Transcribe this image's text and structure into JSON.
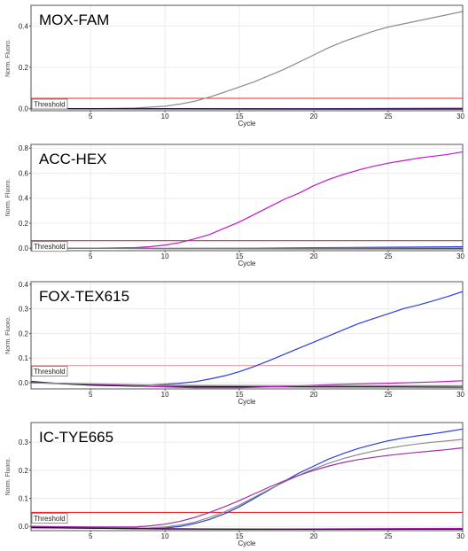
{
  "chart_data": [
    {
      "type": "line",
      "title": "MOX-FAM",
      "xlabel": "Cycle",
      "ylabel": "Norm. Fluoro.",
      "xlim": [
        1,
        30
      ],
      "ylim": [
        -0.01,
        0.5
      ],
      "xticks": [
        5,
        10,
        15,
        20,
        25,
        30
      ],
      "yticks": [
        0.0,
        0.2,
        0.4
      ],
      "ytick_labels": [
        "0.0",
        "0.2",
        "0.4"
      ],
      "threshold": 0.05,
      "threshold_label": "Threshold",
      "threshold_color": "#e8292e",
      "grid": true,
      "series": [
        {
          "color": "#8c8c8c",
          "x": [
            1,
            5,
            8,
            10,
            11,
            12,
            13,
            14,
            15,
            16,
            17,
            18,
            19,
            20,
            21,
            22,
            23,
            24,
            25,
            26,
            27,
            28,
            29,
            30
          ],
          "y": [
            0.0,
            0.0,
            0.003,
            0.012,
            0.022,
            0.036,
            0.056,
            0.08,
            0.105,
            0.13,
            0.16,
            0.19,
            0.225,
            0.26,
            0.295,
            0.325,
            0.35,
            0.375,
            0.395,
            0.41,
            0.425,
            0.44,
            0.455,
            0.47
          ]
        },
        {
          "color": "#2a3ee0",
          "x": [
            1,
            10,
            20,
            30
          ],
          "y": [
            0.0,
            0.0,
            0.0,
            0.002
          ]
        },
        {
          "color": "#9e2fa6",
          "x": [
            1,
            10,
            20,
            30
          ],
          "y": [
            0.0,
            -0.001,
            -0.001,
            0.0
          ]
        },
        {
          "color": "#111111",
          "x": [
            1,
            10,
            20,
            30
          ],
          "y": [
            0.0,
            -0.001,
            -0.002,
            -0.002
          ]
        }
      ]
    },
    {
      "type": "line",
      "title": "ACC-HEX",
      "xlabel": "Cycle",
      "ylabel": "Norm. Fluoro.",
      "xlim": [
        1,
        30
      ],
      "ylim": [
        -0.02,
        0.83
      ],
      "xticks": [
        5,
        10,
        15,
        20,
        25,
        30
      ],
      "yticks": [
        0.0,
        0.2,
        0.4,
        0.6,
        0.8
      ],
      "ytick_labels": [
        "0.0",
        "0.2",
        "0.4",
        "0.6",
        "0.8"
      ],
      "threshold": 0.06,
      "threshold_label": "Threshold",
      "threshold_color": "#e8292e",
      "grid": true,
      "series": [
        {
          "color": "#c018c8",
          "x": [
            1,
            5,
            8,
            9,
            10,
            11,
            12,
            13,
            14,
            15,
            16,
            17,
            18,
            19,
            20,
            21,
            22,
            23,
            24,
            25,
            26,
            27,
            28,
            29,
            30
          ],
          "y": [
            0.0,
            0.0,
            0.005,
            0.012,
            0.025,
            0.045,
            0.075,
            0.11,
            0.16,
            0.21,
            0.27,
            0.33,
            0.39,
            0.44,
            0.5,
            0.55,
            0.59,
            0.625,
            0.655,
            0.68,
            0.7,
            0.72,
            0.735,
            0.75,
            0.77
          ]
        },
        {
          "color": "#2a3ee0",
          "x": [
            1,
            10,
            15,
            20,
            25,
            30
          ],
          "y": [
            0.0,
            -0.002,
            0.0,
            0.004,
            0.008,
            0.012
          ]
        },
        {
          "color": "#111111",
          "x": [
            1,
            10,
            20,
            30
          ],
          "y": [
            0.0,
            -0.003,
            -0.004,
            -0.004
          ]
        },
        {
          "color": "#8c8c8c",
          "x": [
            1,
            10,
            20,
            30
          ],
          "y": [
            0.0,
            -0.001,
            0.0,
            0.002
          ]
        }
      ]
    },
    {
      "type": "line",
      "title": "FOX-TEX615",
      "xlabel": "Cycle",
      "ylabel": "Norm. Fluoro.",
      "xlim": [
        1,
        30
      ],
      "ylim": [
        -0.025,
        0.41
      ],
      "xticks": [
        5,
        10,
        15,
        20,
        25,
        30
      ],
      "yticks": [
        0.0,
        0.1,
        0.2,
        0.3,
        0.4
      ],
      "ytick_labels": [
        "0.0",
        "0.1",
        "0.2",
        "0.3",
        "0.4"
      ],
      "threshold": 0.07,
      "threshold_label": "Threshold",
      "threshold_color": "#f2a3a6",
      "grid": true,
      "series": [
        {
          "color": "#2a3ee0",
          "x": [
            1,
            5,
            8,
            10,
            11,
            12,
            13,
            14,
            15,
            16,
            17,
            18,
            19,
            20,
            21,
            22,
            23,
            24,
            25,
            26,
            27,
            28,
            29,
            30
          ],
          "y": [
            0.0,
            -0.008,
            -0.012,
            -0.006,
            -0.002,
            0.004,
            0.015,
            0.028,
            0.045,
            0.066,
            0.09,
            0.115,
            0.14,
            0.165,
            0.19,
            0.215,
            0.24,
            0.26,
            0.28,
            0.3,
            0.315,
            0.332,
            0.35,
            0.37
          ]
        },
        {
          "color": "#111111",
          "x": [
            1,
            3,
            5,
            8,
            10,
            15,
            20,
            25,
            30
          ],
          "y": [
            0.005,
            -0.004,
            -0.01,
            -0.014,
            -0.015,
            -0.016,
            -0.017,
            -0.017,
            -0.018
          ]
        },
        {
          "color": "#c018c8",
          "x": [
            1,
            5,
            8,
            10,
            12,
            15,
            18,
            20,
            22,
            25,
            28,
            30
          ],
          "y": [
            0.0,
            -0.006,
            -0.012,
            -0.017,
            -0.02,
            -0.02,
            -0.015,
            -0.01,
            -0.006,
            -0.002,
            0.003,
            0.008
          ]
        },
        {
          "color": "#8c8c8c",
          "x": [
            1,
            10,
            20,
            30
          ],
          "y": [
            0.0,
            -0.01,
            -0.012,
            -0.012
          ]
        }
      ]
    },
    {
      "type": "line",
      "title": "IC-TYE665",
      "xlabel": "Cycle",
      "ylabel": "Norm. Fluoro.",
      "xlim": [
        1,
        30
      ],
      "ylim": [
        -0.015,
        0.37
      ],
      "xticks": [
        5,
        10,
        15,
        20,
        25,
        30
      ],
      "yticks": [
        0.0,
        0.1,
        0.2,
        0.3
      ],
      "ytick_labels": [
        "0.0",
        "0.1",
        "0.2",
        "0.3"
      ],
      "threshold": 0.05,
      "threshold_label": "Threshold",
      "threshold_color": "#e8292e",
      "grid": true,
      "series": [
        {
          "color": "#2a3ee0",
          "x": [
            1,
            5,
            8,
            9,
            10,
            11,
            12,
            13,
            14,
            15,
            16,
            17,
            18,
            19,
            20,
            21,
            22,
            23,
            24,
            25,
            26,
            27,
            28,
            29,
            30
          ],
          "y": [
            0.0,
            -0.005,
            -0.008,
            -0.008,
            -0.006,
            0.0,
            0.01,
            0.025,
            0.045,
            0.07,
            0.1,
            0.13,
            0.16,
            0.19,
            0.215,
            0.24,
            0.26,
            0.278,
            0.292,
            0.305,
            0.315,
            0.323,
            0.33,
            0.338,
            0.347
          ]
        },
        {
          "color": "#8c8c8c",
          "x": [
            1,
            5,
            8,
            9,
            10,
            11,
            12,
            13,
            14,
            15,
            16,
            17,
            18,
            19,
            20,
            21,
            22,
            23,
            24,
            25,
            26,
            27,
            28,
            29,
            30
          ],
          "y": [
            0.0,
            -0.004,
            -0.006,
            -0.005,
            -0.002,
            0.005,
            0.015,
            0.032,
            0.052,
            0.076,
            0.104,
            0.132,
            0.158,
            0.182,
            0.205,
            0.225,
            0.242,
            0.256,
            0.268,
            0.278,
            0.287,
            0.294,
            0.3,
            0.305,
            0.31
          ]
        },
        {
          "color": "#9e2fa6",
          "x": [
            1,
            5,
            8,
            9,
            10,
            11,
            12,
            13,
            14,
            15,
            16,
            17,
            18,
            19,
            20,
            21,
            22,
            23,
            24,
            25,
            26,
            27,
            28,
            29,
            30
          ],
          "y": [
            0.0,
            -0.002,
            -0.002,
            0.002,
            0.008,
            0.018,
            0.032,
            0.05,
            0.07,
            0.092,
            0.116,
            0.14,
            0.162,
            0.182,
            0.2,
            0.215,
            0.228,
            0.238,
            0.246,
            0.253,
            0.259,
            0.264,
            0.269,
            0.274,
            0.28
          ]
        },
        {
          "color": "#c018c8",
          "x": [
            1,
            10,
            15,
            20,
            25,
            30
          ],
          "y": [
            -0.005,
            -0.008,
            -0.01,
            -0.009,
            -0.008,
            -0.007
          ]
        },
        {
          "color": "#111111",
          "x": [
            1,
            10,
            20,
            30
          ],
          "y": [
            -0.004,
            -0.009,
            -0.01,
            -0.01
          ]
        }
      ]
    }
  ]
}
